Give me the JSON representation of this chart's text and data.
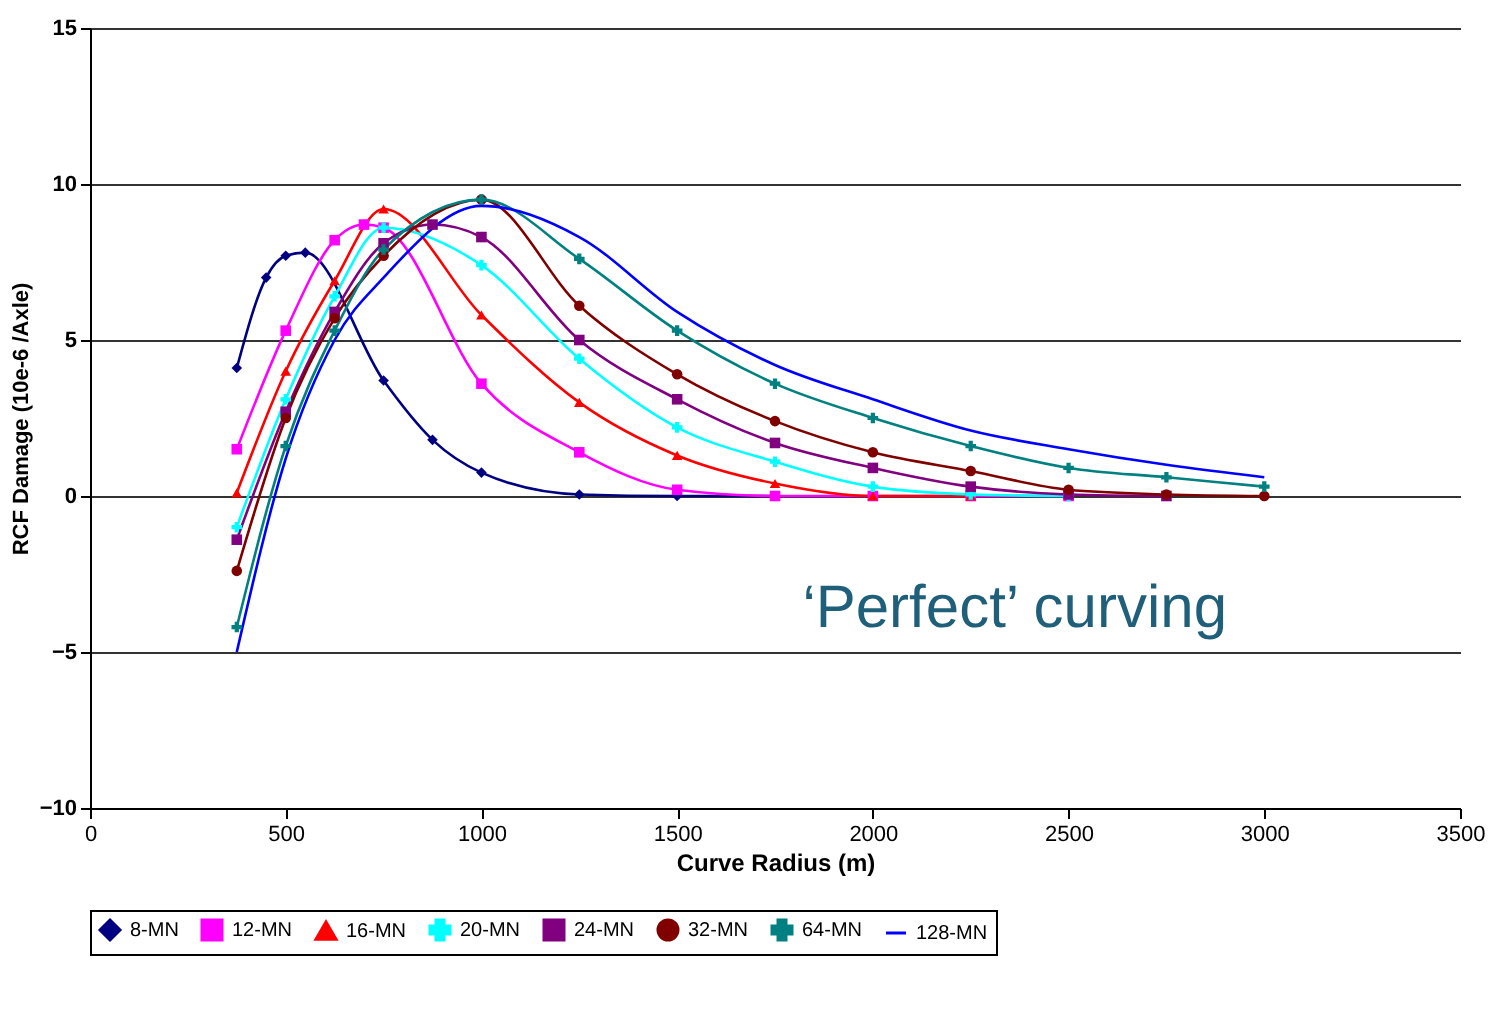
{
  "chart_data": {
    "type": "line",
    "xlabel": "Curve Radius (m)",
    "ylabel": "RCF Damage (10e-6 /Axle)",
    "xlim": [
      0,
      3500
    ],
    "xticks": [
      0,
      500,
      1000,
      1500,
      2000,
      2500,
      3000,
      3500
    ],
    "ylim": [
      -10,
      15
    ],
    "yticks": [
      -10,
      -5,
      0,
      5,
      10,
      15
    ],
    "grid": "y",
    "legend": "bottom",
    "annotations": [
      "‘Perfect’ curving"
    ],
    "series": [
      {
        "name": "8-MN",
        "color": "#000080",
        "marker": "diamond",
        "x": [
          375,
          450,
          500,
          550,
          750,
          875,
          1000,
          1250,
          1500,
          1750
        ],
        "values": [
          4.1,
          7.0,
          7.7,
          7.8,
          3.7,
          1.8,
          0.75,
          0.05,
          0,
          0
        ]
      },
      {
        "name": "12-MN",
        "color": "#ff00ff",
        "marker": "square",
        "x": [
          375,
          500,
          625,
          700,
          750,
          1000,
          1250,
          1500,
          1750,
          2000,
          2250,
          2500
        ],
        "values": [
          1.5,
          5.3,
          8.2,
          8.7,
          8.6,
          3.6,
          1.4,
          0.2,
          0,
          0,
          0,
          0
        ]
      },
      {
        "name": "16-MN",
        "color": "#ff0000",
        "marker": "triangle",
        "x": [
          375,
          500,
          625,
          750,
          1000,
          1250,
          1500,
          1750,
          2000,
          2250
        ],
        "values": [
          0.1,
          4.0,
          6.9,
          9.2,
          5.8,
          3.0,
          1.3,
          0.4,
          0,
          0
        ]
      },
      {
        "name": "20-MN",
        "color": "#00ffff",
        "marker": "cross",
        "x": [
          375,
          500,
          625,
          750,
          1000,
          1250,
          1500,
          1750,
          2000,
          2250,
          2500
        ],
        "values": [
          -1.0,
          3.1,
          6.4,
          8.6,
          7.4,
          4.4,
          2.2,
          1.1,
          0.3,
          0.05,
          0
        ]
      },
      {
        "name": "24-MN",
        "color": "#800080",
        "marker": "square",
        "x": [
          375,
          500,
          625,
          750,
          875,
          1000,
          1250,
          1500,
          1750,
          2000,
          2250,
          2500,
          2750
        ],
        "values": [
          -1.4,
          2.7,
          5.9,
          8.1,
          8.7,
          8.3,
          5.0,
          3.1,
          1.7,
          0.9,
          0.3,
          0.05,
          0
        ]
      },
      {
        "name": "32-MN",
        "color": "#800000",
        "marker": "circle",
        "x": [
          375,
          500,
          625,
          750,
          1000,
          1250,
          1500,
          1750,
          2000,
          2250,
          2500,
          2750,
          3000
        ],
        "values": [
          -2.4,
          2.5,
          5.7,
          7.7,
          9.5,
          6.1,
          3.9,
          2.4,
          1.4,
          0.8,
          0.2,
          0.05,
          0
        ]
      },
      {
        "name": "64-MN",
        "color": "#008080",
        "marker": "cross",
        "x": [
          375,
          500,
          625,
          750,
          1000,
          1250,
          1500,
          1750,
          2000,
          2250,
          2500,
          2750,
          3000
        ],
        "values": [
          -4.2,
          1.6,
          5.3,
          7.9,
          9.5,
          7.6,
          5.3,
          3.6,
          2.5,
          1.6,
          0.9,
          0.6,
          0.3
        ]
      },
      {
        "name": "128-MN",
        "color": "#0000ff",
        "marker": "none",
        "x": [
          375,
          500,
          625,
          750,
          1000,
          1250,
          1500,
          1750,
          2000,
          2250,
          2500,
          2750,
          3000
        ],
        "values": [
          -5.0,
          1.2,
          5.0,
          7.0,
          9.3,
          8.3,
          5.9,
          4.2,
          3.1,
          2.1,
          1.5,
          1.0,
          0.6
        ]
      }
    ]
  }
}
